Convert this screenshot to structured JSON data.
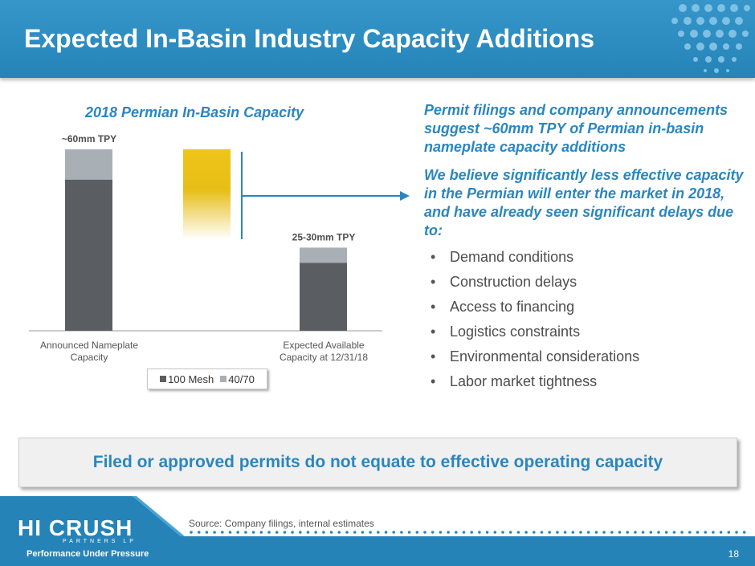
{
  "header": {
    "title": "Expected In-Basin Industry Capacity Additions"
  },
  "chart_data": {
    "type": "bar",
    "title": "2018 Permian In-Basin Capacity",
    "categories": [
      "Announced Nameplate Capacity",
      "Expected Available Capacity at 12/31/18"
    ],
    "category_lines": [
      [
        "Announced Nameplate",
        "Capacity"
      ],
      [
        "Expected Available",
        "Capacity at 12/31/18"
      ]
    ],
    "stacked": true,
    "series": [
      {
        "name": "100 Mesh",
        "values": [
          50,
          22.5
        ],
        "color": "#5a5e62"
      },
      {
        "name": "40/70",
        "values": [
          10,
          5
        ],
        "color": "#a8b0b6"
      }
    ],
    "bar_labels": [
      "~60mm TPY",
      "25-30mm TPY"
    ],
    "ylim": [
      0,
      60
    ],
    "gap_bar_color": "#f0c419",
    "legend_position": "bottom"
  },
  "right_panel": {
    "lead1": "Permit filings and company announcements suggest ~60mm TPY of Permian in-basin nameplate capacity additions",
    "lead2": "We believe significantly less effective capacity in the Permian will enter the market in 2018, and have already seen significant delays due to:",
    "bullet_char": "•",
    "bullets": [
      "Demand conditions",
      "Construction delays",
      "Access to financing",
      "Logistics constraints",
      "Environmental considerations",
      "Labor market tightness"
    ]
  },
  "callout": {
    "text": "Filed or approved permits do not equate to effective operating capacity"
  },
  "footer": {
    "source": "Source: Company filings, internal estimates",
    "page_number": "18",
    "logo": {
      "main": "HI CRUSH",
      "sub": "PARTNERS LP"
    },
    "tagline": "Performance Under Pressure"
  },
  "colors": {
    "brand_blue": "#2a86bf",
    "title_bar": "#2b8bbf",
    "bar_dark": "#5a5e62",
    "bar_light": "#a8b0b6",
    "gold": "#f0c419"
  }
}
